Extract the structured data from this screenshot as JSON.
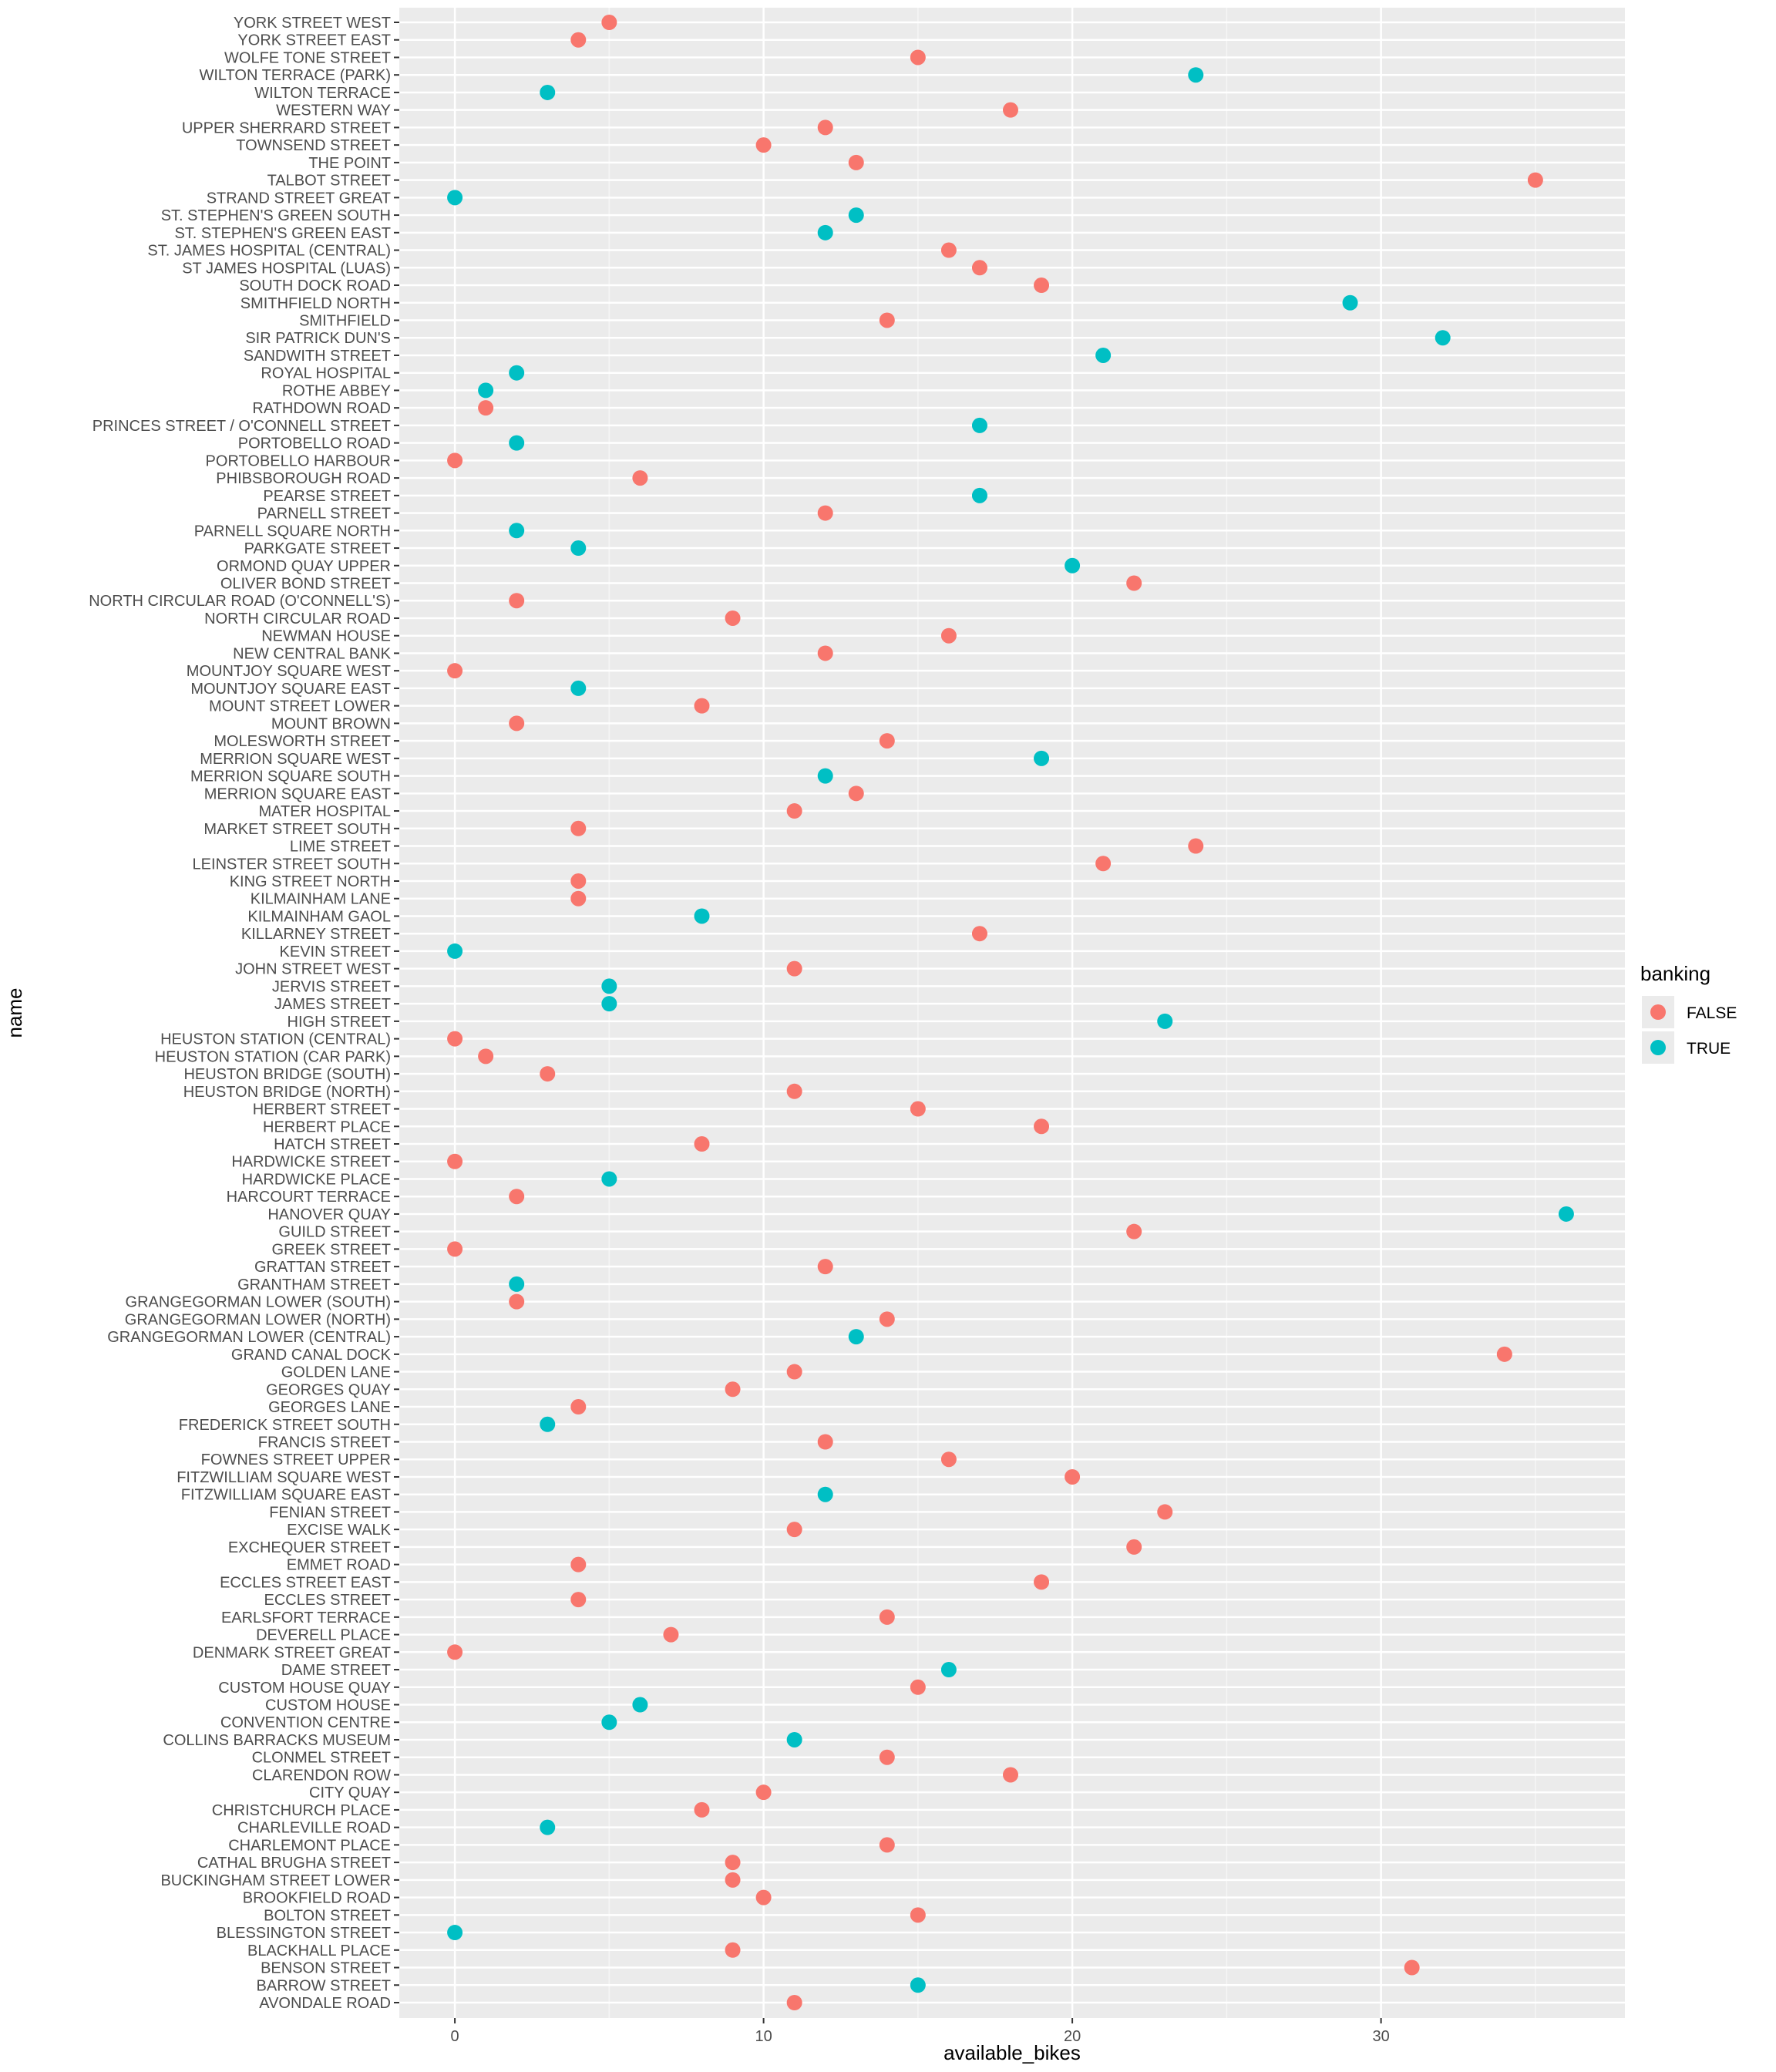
{
  "chart_data": {
    "type": "scatter",
    "xlabel": "available_bikes",
    "ylabel": "name",
    "xlim": [
      -1.8,
      37.9
    ],
    "x_ticks": [
      0,
      10,
      20,
      30
    ],
    "grid": true,
    "legend": {
      "title": "banking",
      "placement": "right",
      "entries": [
        {
          "label": "FALSE",
          "color": "#F8766D"
        },
        {
          "label": "TRUE",
          "color": "#00BFC4"
        }
      ]
    },
    "categories": [
      "YORK STREET WEST",
      "YORK STREET EAST",
      "WOLFE TONE STREET",
      "WILTON TERRACE (PARK)",
      "WILTON TERRACE",
      "WESTERN WAY",
      "UPPER SHERRARD STREET",
      "TOWNSEND STREET",
      "THE POINT",
      "TALBOT STREET",
      "STRAND STREET GREAT",
      "ST. STEPHEN'S GREEN SOUTH",
      "ST. STEPHEN'S GREEN EAST",
      "ST. JAMES HOSPITAL (CENTRAL)",
      "ST JAMES HOSPITAL (LUAS)",
      "SOUTH DOCK ROAD",
      "SMITHFIELD NORTH",
      "SMITHFIELD",
      "SIR PATRICK DUN'S",
      "SANDWITH STREET",
      "ROYAL HOSPITAL",
      "ROTHE ABBEY",
      "RATHDOWN ROAD",
      "PRINCES STREET / O'CONNELL STREET",
      "PORTOBELLO ROAD",
      "PORTOBELLO HARBOUR",
      "PHIBSBOROUGH ROAD",
      "PEARSE STREET",
      "PARNELL STREET",
      "PARNELL SQUARE NORTH",
      "PARKGATE STREET",
      "ORMOND QUAY UPPER",
      "OLIVER BOND STREET",
      "NORTH CIRCULAR ROAD (O'CONNELL'S)",
      "NORTH CIRCULAR ROAD",
      "NEWMAN HOUSE",
      "NEW CENTRAL BANK",
      "MOUNTJOY SQUARE WEST",
      "MOUNTJOY SQUARE EAST",
      "MOUNT STREET LOWER",
      "MOUNT BROWN",
      "MOLESWORTH STREET",
      "MERRION SQUARE WEST",
      "MERRION SQUARE SOUTH",
      "MERRION SQUARE EAST",
      "MATER HOSPITAL",
      "MARKET STREET SOUTH",
      "LIME STREET",
      "LEINSTER STREET SOUTH",
      "KING STREET NORTH",
      "KILMAINHAM LANE",
      "KILMAINHAM GAOL",
      "KILLARNEY STREET",
      "KEVIN STREET",
      "JOHN STREET WEST",
      "JERVIS STREET",
      "JAMES STREET",
      "HIGH STREET",
      "HEUSTON STATION (CENTRAL)",
      "HEUSTON STATION (CAR PARK)",
      "HEUSTON BRIDGE (SOUTH)",
      "HEUSTON BRIDGE (NORTH)",
      "HERBERT STREET",
      "HERBERT PLACE",
      "HATCH STREET",
      "HARDWICKE STREET",
      "HARDWICKE PLACE",
      "HARCOURT TERRACE",
      "HANOVER QUAY",
      "GUILD STREET",
      "GREEK STREET",
      "GRATTAN STREET",
      "GRANTHAM STREET",
      "GRANGEGORMAN LOWER (SOUTH)",
      "GRANGEGORMAN LOWER (NORTH)",
      "GRANGEGORMAN LOWER (CENTRAL)",
      "GRAND CANAL DOCK",
      "GOLDEN LANE",
      "GEORGES QUAY",
      "GEORGES LANE",
      "FREDERICK STREET SOUTH",
      "FRANCIS STREET",
      "FOWNES STREET UPPER",
      "FITZWILLIAM SQUARE WEST",
      "FITZWILLIAM SQUARE EAST",
      "FENIAN STREET",
      "EXCISE WALK",
      "EXCHEQUER STREET",
      "EMMET ROAD",
      "ECCLES STREET EAST",
      "ECCLES STREET",
      "EARLSFORT TERRACE",
      "DEVERELL PLACE",
      "DENMARK STREET GREAT",
      "DAME STREET",
      "CUSTOM HOUSE QUAY",
      "CUSTOM HOUSE",
      "CONVENTION CENTRE",
      "COLLINS BARRACKS MUSEUM",
      "CLONMEL STREET",
      "CLARENDON ROW",
      "CITY QUAY",
      "CHRISTCHURCH PLACE",
      "CHARLEVILLE ROAD",
      "CHARLEMONT PLACE",
      "CATHAL BRUGHA STREET",
      "BUCKINGHAM STREET LOWER",
      "BROOKFIELD ROAD",
      "BOLTON STREET",
      "BLESSINGTON STREET",
      "BLACKHALL PLACE",
      "BENSON STREET",
      "BARROW STREET",
      "AVONDALE ROAD"
    ],
    "values": [
      5,
      4,
      15,
      24,
      3,
      18,
      12,
      10,
      13,
      35,
      0,
      13,
      12,
      16,
      17,
      19,
      29,
      14,
      32,
      21,
      2,
      1,
      1,
      17,
      2,
      0,
      6,
      17,
      12,
      2,
      4,
      20,
      22,
      2,
      9,
      16,
      12,
      0,
      4,
      8,
      2,
      14,
      19,
      12,
      13,
      11,
      4,
      24,
      21,
      4,
      4,
      8,
      17,
      0,
      11,
      5,
      5,
      23,
      0,
      1,
      3,
      11,
      15,
      19,
      8,
      0,
      5,
      2,
      36,
      22,
      0,
      12,
      2,
      2,
      14,
      13,
      34,
      11,
      9,
      4,
      3,
      12,
      16,
      20,
      12,
      23,
      11,
      22,
      4,
      19,
      4,
      14,
      7,
      0,
      16,
      15,
      6,
      5,
      11,
      14,
      18,
      10,
      8,
      3,
      14,
      9,
      9,
      10,
      15,
      0,
      9,
      31,
      15,
      11
    ],
    "banking": [
      false,
      false,
      false,
      true,
      true,
      false,
      false,
      false,
      false,
      false,
      true,
      true,
      true,
      false,
      false,
      false,
      true,
      false,
      true,
      true,
      true,
      true,
      false,
      true,
      true,
      false,
      false,
      true,
      false,
      true,
      true,
      true,
      false,
      false,
      false,
      false,
      false,
      false,
      true,
      false,
      false,
      false,
      true,
      true,
      false,
      false,
      false,
      false,
      false,
      false,
      false,
      true,
      false,
      true,
      false,
      true,
      true,
      true,
      false,
      false,
      false,
      false,
      false,
      false,
      false,
      false,
      true,
      false,
      true,
      false,
      false,
      false,
      true,
      false,
      false,
      true,
      false,
      false,
      false,
      false,
      true,
      false,
      false,
      false,
      true,
      false,
      false,
      false,
      false,
      false,
      false,
      false,
      false,
      false,
      true,
      false,
      true,
      true,
      true,
      false,
      false,
      false,
      false,
      true,
      false,
      false,
      false,
      false,
      false,
      true,
      false,
      false,
      true,
      false
    ]
  }
}
